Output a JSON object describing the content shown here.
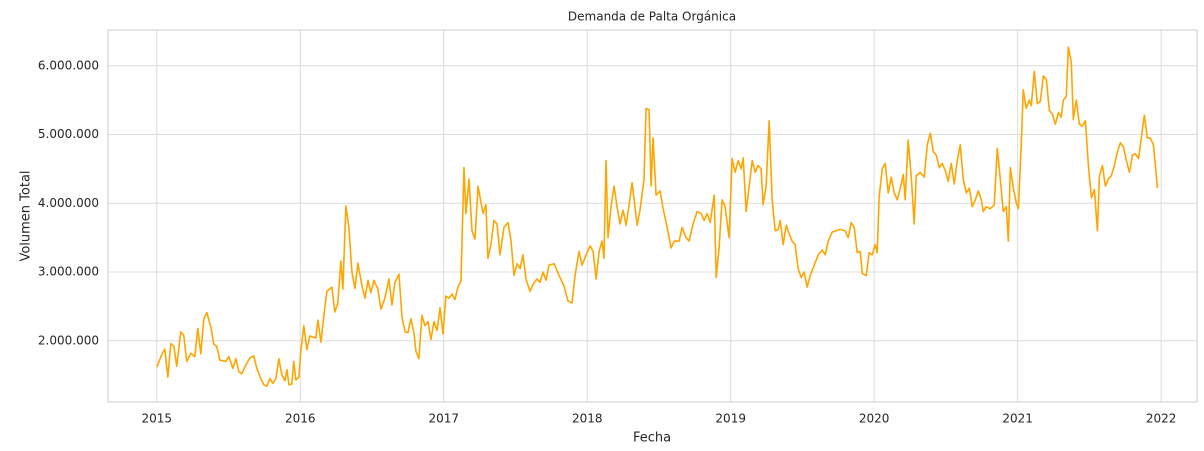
{
  "chart_data": {
    "type": "line",
    "title": "Demanda de Palta Orgánica",
    "x_label": "Fecha",
    "y_label": "Volumen Total",
    "color": "#ffa500",
    "grid": true,
    "xlim": [
      2014.66,
      2022.25
    ],
    "xticks": [
      2015,
      2016,
      2017,
      2018,
      2019,
      2020,
      2021,
      2022
    ],
    "ylim": [
      1110000,
      6520000
    ],
    "yticks": [
      {
        "value": 2000000,
        "label": "2.000.000"
      },
      {
        "value": 3000000,
        "label": "3.000.000"
      },
      {
        "value": 4000000,
        "label": "4.000.000"
      },
      {
        "value": 5000000,
        "label": "5.000.000"
      },
      {
        "value": 6000000,
        "label": "6.000.000"
      }
    ],
    "x": [
      2015.0,
      2015.035,
      2015.056,
      2015.077,
      2015.098,
      2015.119,
      2015.139,
      2015.167,
      2015.188,
      2015.209,
      2015.237,
      2015.265,
      2015.286,
      2015.307,
      2015.328,
      2015.349,
      2015.377,
      2015.398,
      2015.418,
      2015.439,
      2015.481,
      2015.502,
      2015.53,
      2015.551,
      2015.572,
      2015.593,
      2015.621,
      2015.649,
      2015.676,
      2015.697,
      2015.725,
      2015.746,
      2015.767,
      2015.788,
      2015.809,
      2015.83,
      2015.851,
      2015.872,
      2015.893,
      2015.907,
      2015.921,
      2015.941,
      2015.955,
      2015.969,
      2015.99,
      2016.004,
      2016.025,
      2016.046,
      2016.067,
      2016.109,
      2016.123,
      2016.144,
      2016.172,
      2016.186,
      2016.22,
      2016.241,
      2016.262,
      2016.283,
      2016.297,
      2016.318,
      2016.339,
      2016.36,
      2016.381,
      2016.402,
      2016.43,
      2016.451,
      2016.472,
      2016.492,
      2016.513,
      2016.541,
      2016.562,
      2016.59,
      2016.618,
      2016.639,
      2016.66,
      2016.688,
      2016.709,
      2016.73,
      2016.75,
      2016.771,
      2016.792,
      2016.806,
      2016.827,
      2016.848,
      2016.869,
      2016.89,
      2016.911,
      2016.932,
      2016.953,
      2016.974,
      2016.995,
      2017.015,
      2017.036,
      2017.057,
      2017.078,
      2017.099,
      2017.12,
      2017.141,
      2017.155,
      2017.176,
      2017.197,
      2017.218,
      2017.239,
      2017.274,
      2017.294,
      2017.308,
      2017.329,
      2017.35,
      2017.371,
      2017.392,
      2017.42,
      2017.448,
      2017.469,
      2017.49,
      2017.511,
      2017.532,
      2017.552,
      2017.573,
      2017.601,
      2017.622,
      2017.65,
      2017.671,
      2017.692,
      2017.713,
      2017.734,
      2017.769,
      2017.804,
      2017.838,
      2017.866,
      2017.894,
      2017.915,
      2017.943,
      2017.964,
      2017.992,
      2018.02,
      2018.041,
      2018.062,
      2018.083,
      2018.103,
      2018.117,
      2018.131,
      2018.145,
      2018.166,
      2018.187,
      2018.208,
      2018.229,
      2018.25,
      2018.271,
      2018.292,
      2018.313,
      2018.348,
      2018.368,
      2018.396,
      2018.41,
      2018.431,
      2018.445,
      2018.459,
      2018.48,
      2018.508,
      2018.529,
      2018.557,
      2018.585,
      2018.606,
      2018.641,
      2018.661,
      2018.689,
      2018.71,
      2018.738,
      2018.766,
      2018.794,
      2018.815,
      2018.836,
      2018.857,
      2018.885,
      2018.899,
      2018.919,
      2018.94,
      2018.961,
      2018.989,
      2019.01,
      2019.031,
      2019.052,
      2019.073,
      2019.087,
      2019.108,
      2019.129,
      2019.15,
      2019.171,
      2019.191,
      2019.212,
      2019.226,
      2019.247,
      2019.268,
      2019.289,
      2019.31,
      2019.331,
      2019.345,
      2019.366,
      2019.387,
      2019.408,
      2019.428,
      2019.449,
      2019.47,
      2019.491,
      2019.512,
      2019.533,
      2019.554,
      2019.582,
      2019.61,
      2019.638,
      2019.659,
      2019.68,
      2019.707,
      2019.735,
      2019.763,
      2019.798,
      2019.819,
      2019.84,
      2019.861,
      2019.882,
      2019.903,
      2019.917,
      2019.945,
      2019.965,
      2019.986,
      2020.007,
      2020.021,
      2020.035,
      2020.056,
      2020.077,
      2020.098,
      2020.119,
      2020.14,
      2020.161,
      2020.182,
      2020.203,
      2020.216,
      2020.237,
      2020.258,
      2020.279,
      2020.293,
      2020.321,
      2020.349,
      2020.37,
      2020.391,
      2020.412,
      2020.433,
      2020.454,
      2020.474,
      2020.495,
      2020.516,
      2020.537,
      2020.558,
      2020.579,
      2020.6,
      2020.621,
      2020.642,
      2020.663,
      2020.684,
      2020.705,
      2020.726,
      2020.747,
      2020.76,
      2020.781,
      2020.809,
      2020.837,
      2020.858,
      2020.879,
      2020.9,
      2020.921,
      2020.935,
      2020.949,
      2020.97,
      2020.991,
      2021.005,
      2021.025,
      2021.039,
      2021.06,
      2021.081,
      2021.095,
      2021.116,
      2021.137,
      2021.158,
      2021.179,
      2021.2,
      2021.221,
      2021.242,
      2021.263,
      2021.284,
      2021.304,
      2021.318,
      2021.339,
      2021.353,
      2021.374,
      2021.388,
      2021.409,
      2021.43,
      2021.451,
      2021.472,
      2021.493,
      2021.514,
      2021.535,
      2021.556,
      2021.57,
      2021.591,
      2021.611,
      2021.632,
      2021.653,
      2021.674,
      2021.695,
      2021.716,
      2021.737,
      2021.758,
      2021.779,
      2021.8,
      2021.821,
      2021.842,
      2021.862,
      2021.883,
      2021.904,
      2021.925,
      2021.946,
      2021.96,
      2021.974
    ],
    "values": [
      1620000,
      1800000,
      1880000,
      1470000,
      1960000,
      1920000,
      1630000,
      2130000,
      2080000,
      1700000,
      1820000,
      1770000,
      2180000,
      1810000,
      2320000,
      2410000,
      2200000,
      1950000,
      1920000,
      1720000,
      1700000,
      1770000,
      1600000,
      1740000,
      1550000,
      1520000,
      1650000,
      1750000,
      1780000,
      1600000,
      1450000,
      1360000,
      1340000,
      1450000,
      1380000,
      1450000,
      1740000,
      1500000,
      1420000,
      1580000,
      1360000,
      1370000,
      1700000,
      1430000,
      1470000,
      1850000,
      2220000,
      1870000,
      2070000,
      2040000,
      2300000,
      1980000,
      2500000,
      2720000,
      2780000,
      2420000,
      2550000,
      3160000,
      2750000,
      3960000,
      3650000,
      3000000,
      2760000,
      3130000,
      2800000,
      2620000,
      2880000,
      2700000,
      2880000,
      2750000,
      2460000,
      2620000,
      2900000,
      2520000,
      2850000,
      2970000,
      2350000,
      2130000,
      2120000,
      2320000,
      2120000,
      1850000,
      1740000,
      2370000,
      2220000,
      2280000,
      2020000,
      2280000,
      2150000,
      2480000,
      2100000,
      2650000,
      2620000,
      2680000,
      2600000,
      2780000,
      2870000,
      4520000,
      3850000,
      4350000,
      3600000,
      3480000,
      4250000,
      3850000,
      3980000,
      3200000,
      3400000,
      3750000,
      3700000,
      3250000,
      3650000,
      3720000,
      3450000,
      2950000,
      3120000,
      3050000,
      3250000,
      2900000,
      2720000,
      2820000,
      2900000,
      2850000,
      3000000,
      2880000,
      3100000,
      3120000,
      2950000,
      2800000,
      2580000,
      2550000,
      2950000,
      3300000,
      3100000,
      3250000,
      3380000,
      3300000,
      2900000,
      3300000,
      3450000,
      3200000,
      4620000,
      3500000,
      3950000,
      4250000,
      3950000,
      3700000,
      3900000,
      3680000,
      3980000,
      4300000,
      3680000,
      3900000,
      4350000,
      5380000,
      5360000,
      4250000,
      4950000,
      4120000,
      4180000,
      3920000,
      3650000,
      3350000,
      3450000,
      3450000,
      3650000,
      3500000,
      3450000,
      3700000,
      3880000,
      3850000,
      3750000,
      3850000,
      3720000,
      4120000,
      2920000,
      3350000,
      4050000,
      3950000,
      3500000,
      4650000,
      4450000,
      4620000,
      4500000,
      4660000,
      3880000,
      4250000,
      4620000,
      4450000,
      4550000,
      4500000,
      3980000,
      4250000,
      5200000,
      4050000,
      3600000,
      3620000,
      3750000,
      3400000,
      3680000,
      3550000,
      3450000,
      3400000,
      3050000,
      2920000,
      3000000,
      2780000,
      2950000,
      3100000,
      3250000,
      3320000,
      3250000,
      3450000,
      3580000,
      3600000,
      3620000,
      3600000,
      3500000,
      3720000,
      3650000,
      3280000,
      3300000,
      2980000,
      2950000,
      3280000,
      3250000,
      3400000,
      3280000,
      4100000,
      4500000,
      4580000,
      4150000,
      4380000,
      4150000,
      4050000,
      4220000,
      4420000,
      4050000,
      4920000,
      4400000,
      3700000,
      4400000,
      4450000,
      4380000,
      4850000,
      5020000,
      4750000,
      4700000,
      4520000,
      4580000,
      4480000,
      4320000,
      4580000,
      4280000,
      4620000,
      4850000,
      4350000,
      4150000,
      4220000,
      3950000,
      4050000,
      4180000,
      4050000,
      3880000,
      3950000,
      3920000,
      3980000,
      4800000,
      4350000,
      3880000,
      3950000,
      3450000,
      4520000,
      4220000,
      4000000,
      3920000,
      4850000,
      5650000,
      5380000,
      5500000,
      5420000,
      5920000,
      5450000,
      5480000,
      5850000,
      5800000,
      5350000,
      5300000,
      5150000,
      5320000,
      5250000,
      5500000,
      5550000,
      6270000,
      6050000,
      5220000,
      5500000,
      5150000,
      5120000,
      5200000,
      4550000,
      4080000,
      4200000,
      3600000,
      4400000,
      4550000,
      4250000,
      4350000,
      4400000,
      4550000,
      4750000,
      4880000,
      4820000,
      4620000,
      4450000,
      4700000,
      4720000,
      4650000,
      4950000,
      5280000,
      4950000,
      4950000,
      4850000,
      4550000,
      4220000
    ]
  }
}
